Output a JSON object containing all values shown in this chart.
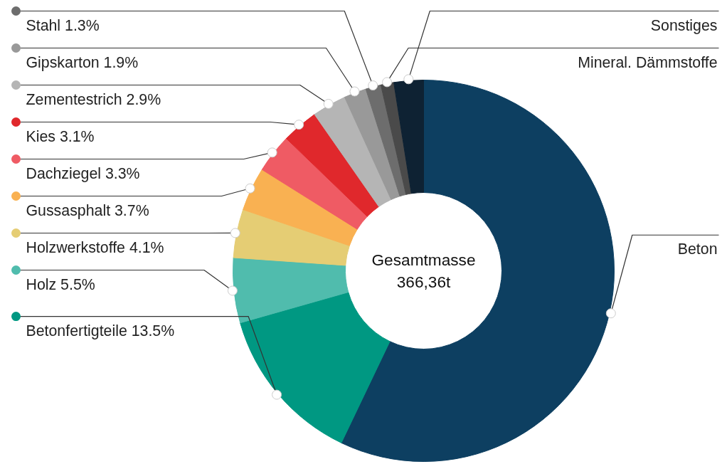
{
  "chart_data": {
    "type": "donut",
    "categories": [
      "Beton",
      "Betonfertigteile",
      "Holz",
      "Holzwerkstoffe",
      "Gussasphalt",
      "Dachziegel",
      "Kies",
      "Zementestrich",
      "Gipskarton",
      "Stahl",
      "Mineral. Dämmstoffe",
      "Sonstiges"
    ],
    "values": [
      57.1,
      13.5,
      5.5,
      4.1,
      3.7,
      3.3,
      3.1,
      2.9,
      1.9,
      1.3,
      1.1,
      2.5
    ],
    "value_labels": [
      null,
      "13.5%",
      "5.5%",
      "4.1%",
      "3.7%",
      "3.3%",
      "3.1%",
      "2.9%",
      "1.9%",
      "1.3%",
      null,
      null
    ],
    "colors": [
      "#0d3f61",
      "#009882",
      "#50bcad",
      "#e5cd74",
      "#f9b152",
      "#ef5b64",
      "#e0282c",
      "#b5b5b5",
      "#999999",
      "#6d6d6d",
      "#4a4a4a",
      "#0e2233"
    ],
    "annotations": [
      "Gesamtmasse\n366,36t"
    ],
    "legend": "left"
  }
}
